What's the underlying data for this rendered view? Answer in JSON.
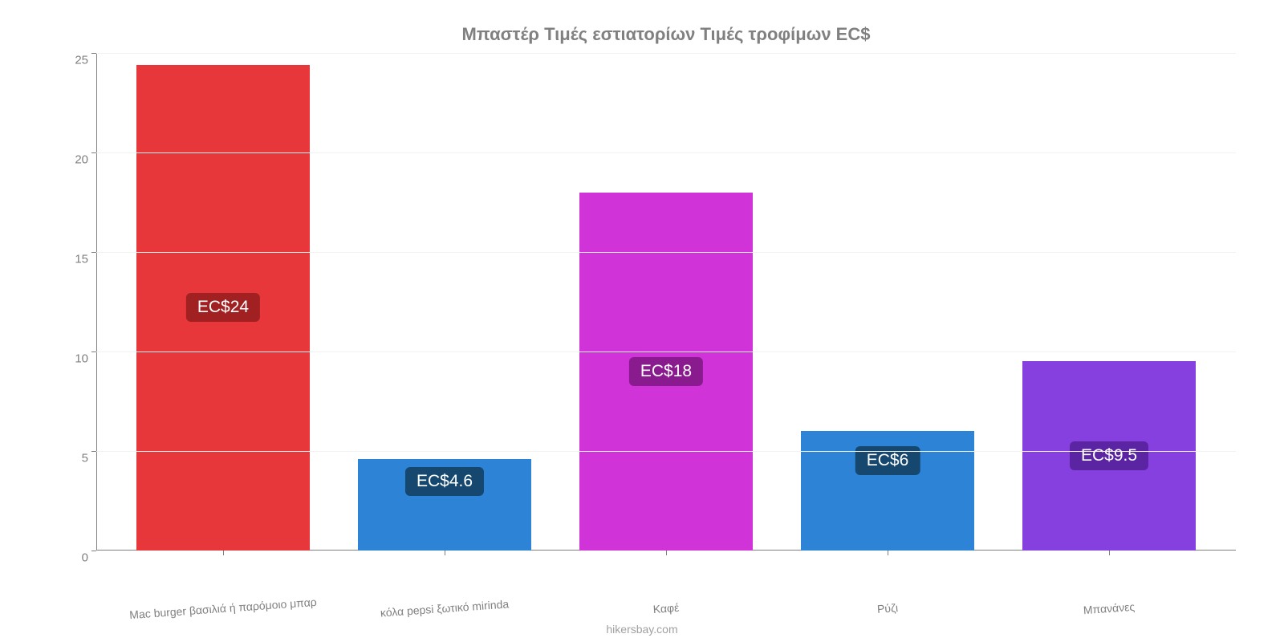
{
  "chart": {
    "type": "bar",
    "title": "Μπαστέρ Τιμές εστιατορίων Τιμές τροφίμων EC$",
    "title_color": "#808080",
    "title_fontsize": 22,
    "background_color": "#ffffff",
    "grid_color": "#f2f2f2",
    "axis_color": "#808080",
    "label_color": "#808080",
    "label_fontsize": 14,
    "bar_label_fontsize": 21,
    "ylim": [
      0,
      25
    ],
    "yticks": [
      0,
      5,
      10,
      15,
      20,
      25
    ],
    "bar_width": 0.78,
    "categories": [
      "Mac burger βασιλιά ή παρόμοιο μπαρ",
      "κόλα pepsi ξωτικό mirinda",
      "Καφέ",
      "Ρύζι",
      "Μπανάνες"
    ],
    "values": [
      24.4,
      4.6,
      18,
      6,
      9.5
    ],
    "value_labels": [
      "EC$24",
      "EC$4.6",
      "EC$18",
      "EC$6",
      "EC$9.5"
    ],
    "bar_colors": [
      "#e7373a",
      "#2d84d6",
      "#d033d8",
      "#2d84d6",
      "#8640e0"
    ],
    "label_bg_colors": [
      "#a12122",
      "#16486f",
      "#8a1b8f",
      "#16486f",
      "#5a24a3"
    ],
    "footer": "hikersbay.com",
    "footer_color": "#a0a0a0"
  }
}
